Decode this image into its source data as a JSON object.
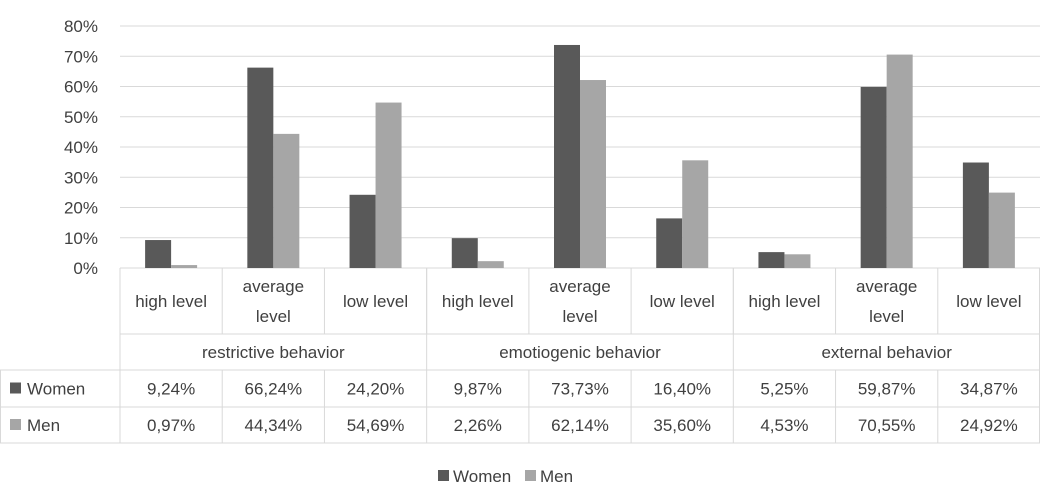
{
  "chart_data": {
    "type": "bar",
    "title": "",
    "xlabel": "",
    "ylabel": "",
    "ylim": [
      0,
      80
    ],
    "y_ticks": [
      "0%",
      "10%",
      "20%",
      "30%",
      "40%",
      "50%",
      "60%",
      "70%",
      "80%"
    ],
    "grid": true,
    "legend_position": "bottom",
    "groups": [
      {
        "label": "restrictive behavior",
        "categories": [
          "high level",
          "average level",
          "low level"
        ]
      },
      {
        "label": "emotiogenic behavior",
        "categories": [
          "high level",
          "average level",
          "low level"
        ]
      },
      {
        "label": "external behavior",
        "categories": [
          "high level",
          "average level",
          "low level"
        ]
      }
    ],
    "categories": [
      "high level",
      "average level",
      "low level",
      "high level",
      "average level",
      "low level",
      "high level",
      "average level",
      "low level"
    ],
    "series": [
      {
        "name": "Women",
        "color": "#595959",
        "values": [
          9.24,
          66.24,
          24.2,
          9.87,
          73.73,
          16.4,
          5.25,
          59.87,
          34.87
        ],
        "labels": [
          "9,24%",
          "66,24%",
          "24,20%",
          "9,87%",
          "73,73%",
          "16,40%",
          "5,25%",
          "59,87%",
          "34,87%"
        ]
      },
      {
        "name": "Men",
        "color": "#a6a6a6",
        "values": [
          0.97,
          44.34,
          54.69,
          2.26,
          62.14,
          35.6,
          4.53,
          70.55,
          24.92
        ],
        "labels": [
          "0,97%",
          "44,34%",
          "54,69%",
          "2,26%",
          "62,14%",
          "35,60%",
          "4,53%",
          "70,55%",
          "24,92%"
        ]
      }
    ]
  }
}
